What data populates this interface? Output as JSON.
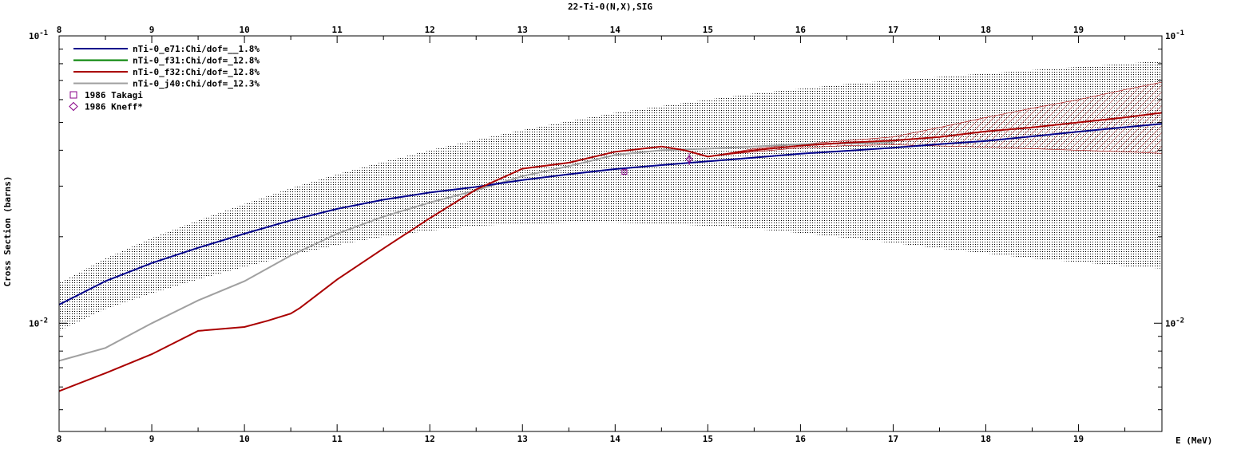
{
  "chart_data": {
    "type": "line",
    "title": "22-Ti-0(N,X),SIG",
    "xlabel": "E (MeV)",
    "ylabel": "Cross Section (barns)",
    "xlim": [
      8,
      19.9
    ],
    "ylim": [
      0.0042,
      0.1
    ],
    "yscale": "log",
    "x_ticks": [
      "8",
      "9",
      "10",
      "11",
      "12",
      "13",
      "14",
      "15",
      "16",
      "17",
      "18",
      "19"
    ],
    "y_tick_labels": [
      {
        "mantissa": "10",
        "exponent": "-1",
        "value": 0.1
      },
      {
        "mantissa": "10",
        "exponent": "-2",
        "value": 0.01
      }
    ],
    "legend_position": "top-left",
    "series": [
      {
        "name": "nTi-0_e71:Chi/dof=__1.8%",
        "color": "#00008b",
        "x": [
          8,
          8.5,
          9,
          9.5,
          10,
          10.5,
          11,
          11.5,
          12,
          12.5,
          13,
          13.5,
          14,
          14.5,
          15,
          15.5,
          16,
          16.5,
          17,
          17.5,
          18,
          18.5,
          19,
          19.5,
          19.9
        ],
        "y": [
          0.0116,
          0.014,
          0.0162,
          0.0183,
          0.0205,
          0.0228,
          0.025,
          0.0269,
          0.0285,
          0.0298,
          0.0315,
          0.033,
          0.0344,
          0.0355,
          0.0366,
          0.0377,
          0.0389,
          0.0398,
          0.0408,
          0.042,
          0.0431,
          0.0447,
          0.0464,
          0.0481,
          0.0494
        ],
        "band_upper": [
          0.0138,
          0.0168,
          0.0198,
          0.0228,
          0.026,
          0.0295,
          0.033,
          0.0365,
          0.04,
          0.0435,
          0.047,
          0.0505,
          0.054,
          0.057,
          0.06,
          0.063,
          0.0655,
          0.068,
          0.07,
          0.072,
          0.074,
          0.076,
          0.078,
          0.08,
          0.0818
        ],
        "band_lower": [
          0.0094,
          0.0112,
          0.0127,
          0.0142,
          0.0157,
          0.0172,
          0.0187,
          0.02,
          0.021,
          0.0218,
          0.0222,
          0.0224,
          0.0224,
          0.0222,
          0.0218,
          0.0213,
          0.0206,
          0.0198,
          0.019,
          0.0182,
          0.0175,
          0.0168,
          0.0163,
          0.0158,
          0.0155
        ]
      },
      {
        "name": "nTi-0_f31:Chi/dof=_12.8%",
        "color": "#008000",
        "x": [],
        "y": []
      },
      {
        "name": "nTi-0_f32:Chi/dof=_12.8%",
        "color": "#aa0000",
        "x": [
          8,
          8.5,
          9,
          9.5,
          10,
          10.25,
          10.5,
          10.6,
          11,
          11.5,
          12,
          12.5,
          13,
          13.5,
          14,
          14.5,
          14.75,
          15,
          15.5,
          16,
          16.5,
          17,
          17.5,
          18,
          18.5,
          19,
          19.5,
          19.9
        ],
        "y": [
          0.0058,
          0.0067,
          0.0078,
          0.0094,
          0.0097,
          0.0102,
          0.0108,
          0.0113,
          0.0142,
          0.0182,
          0.0232,
          0.0292,
          0.0345,
          0.0362,
          0.0395,
          0.0412,
          0.04,
          0.038,
          0.04,
          0.0415,
          0.0425,
          0.0432,
          0.0445,
          0.0465,
          0.048,
          0.05,
          0.052,
          0.054
        ],
        "band_upper": [
          0.0058,
          0.0067,
          0.0078,
          0.0094,
          0.0097,
          0.0102,
          0.0108,
          0.0113,
          0.0142,
          0.0182,
          0.0232,
          0.0292,
          0.0345,
          0.0362,
          0.0395,
          0.0412,
          0.04,
          0.038,
          0.0405,
          0.042,
          0.0432,
          0.0445,
          0.048,
          0.052,
          0.056,
          0.06,
          0.065,
          0.069
        ],
        "band_lower": [
          0.0058,
          0.0067,
          0.0078,
          0.0094,
          0.0097,
          0.0102,
          0.0108,
          0.0113,
          0.0142,
          0.0182,
          0.0232,
          0.0292,
          0.0345,
          0.0362,
          0.0395,
          0.0412,
          0.04,
          0.038,
          0.0395,
          0.0408,
          0.0415,
          0.0418,
          0.0414,
          0.041,
          0.0405,
          0.04,
          0.0395,
          0.039
        ]
      },
      {
        "name": "nTi-0_j40:Chi/dof=_12.3%",
        "color": "#a0a0a0",
        "x": [
          8,
          8.5,
          9,
          9.5,
          10,
          10.5,
          11,
          11.5,
          12,
          12.5,
          13,
          13.5,
          14,
          14.5,
          15,
          15.5,
          16,
          16.5,
          17
        ],
        "y": [
          0.0074,
          0.0082,
          0.01,
          0.012,
          0.014,
          0.0172,
          0.0205,
          0.0235,
          0.0263,
          0.029,
          0.0325,
          0.0352,
          0.0385,
          0.04,
          0.0405,
          0.0412,
          0.042,
          0.0422,
          0.0425
        ]
      },
      {
        "name": "1986 Takagi",
        "color": "#880088",
        "marker": "square",
        "x": [
          14.1
        ],
        "y": [
          0.0336
        ],
        "yerr_low": [
          0.033
        ],
        "yerr_high": [
          0.0342
        ]
      },
      {
        "name": "1986 Kneff*",
        "color": "#880088",
        "marker": "diamond",
        "x": [
          14.8
        ],
        "y": [
          0.0372
        ],
        "yerr_low": [
          0.0355
        ],
        "yerr_high": [
          0.039
        ]
      }
    ]
  }
}
